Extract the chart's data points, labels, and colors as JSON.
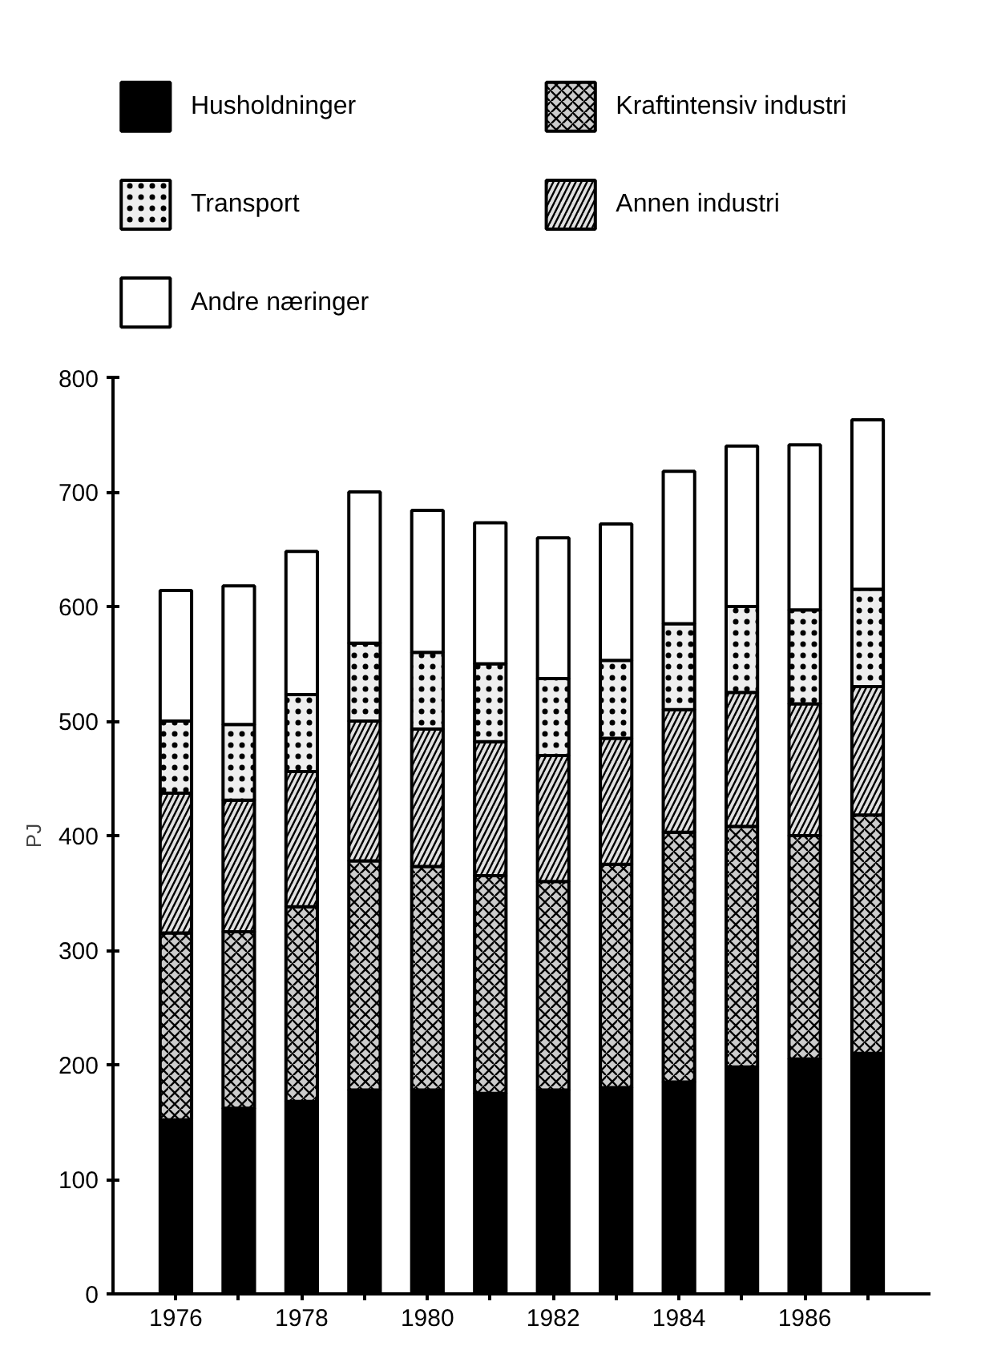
{
  "chart_data": {
    "type": "bar",
    "stacked": true,
    "ylabel": "PJ",
    "x": [
      1976,
      1977,
      1978,
      1979,
      1980,
      1981,
      1982,
      1983,
      1984,
      1985,
      1986,
      1987
    ],
    "xlim": [
      1975,
      1988
    ],
    "xticks": [
      1976,
      {
        "value": 1977,
        "label": null
      },
      1978,
      {
        "value": 1979,
        "label": null
      },
      1980,
      {
        "value": 1981,
        "label": null
      },
      1982,
      {
        "value": 1983,
        "label": null
      },
      1984,
      {
        "value": 1985,
        "label": null
      },
      1986,
      {
        "value": 1987,
        "label": null
      }
    ],
    "ylim": [
      0,
      800
    ],
    "yticks": [
      0,
      100,
      200,
      300,
      400,
      500,
      600,
      700,
      800
    ],
    "grid": false,
    "legend": "top",
    "series": [
      {
        "name": "Husholdninger",
        "color": "#000000",
        "values": [
          152,
          162,
          168,
          178,
          178,
          175,
          178,
          180,
          185,
          198,
          205,
          210
        ]
      },
      {
        "name": "Kraftintensiv industri",
        "color": "#cccccc",
        "values": [
          163,
          154,
          170,
          200,
          195,
          190,
          182,
          195,
          218,
          210,
          195,
          208
        ]
      },
      {
        "name": "Annen industri",
        "color": "#e0e0e0",
        "values": [
          122,
          115,
          118,
          122,
          120,
          117,
          110,
          110,
          107,
          117,
          115,
          112
        ]
      },
      {
        "name": "Transport",
        "color": "#eeeeee",
        "values": [
          63,
          66,
          67,
          68,
          67,
          68,
          67,
          68,
          75,
          75,
          82,
          85
        ]
      },
      {
        "name": "Andre næringer",
        "color": "#ffffff",
        "values": [
          114,
          121,
          125,
          132,
          124,
          123,
          123,
          119,
          133,
          140,
          144,
          148
        ]
      }
    ]
  }
}
